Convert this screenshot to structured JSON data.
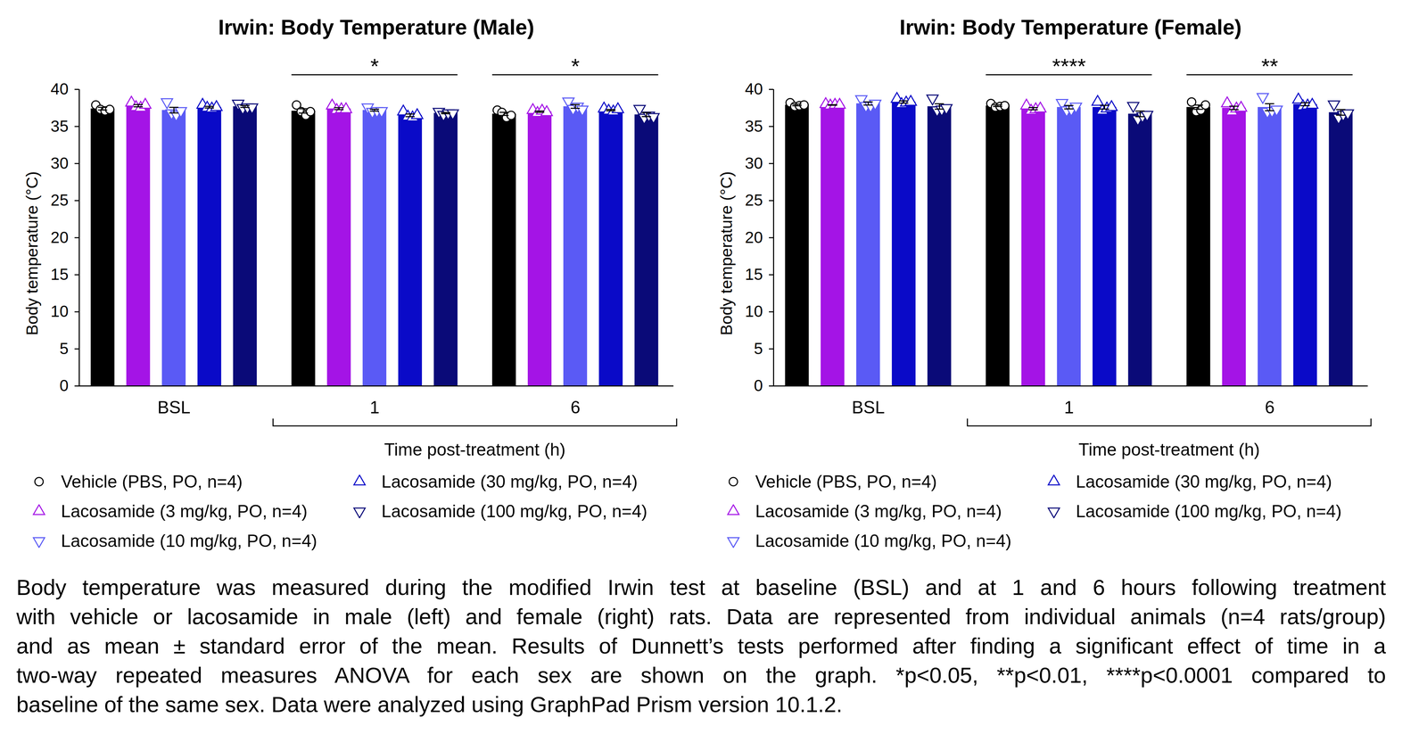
{
  "chart_data": [
    {
      "type": "bar",
      "title": "Irwin: Body Temperature (Male)",
      "xlabel": "Time post-treatment (h)",
      "ylabel": "Body temperature (°C)",
      "categories": [
        "BSL",
        "1",
        "6"
      ],
      "ylim": [
        0,
        40
      ],
      "yticks": [
        0,
        5,
        10,
        15,
        20,
        25,
        30,
        35,
        40
      ],
      "grid": false,
      "legend": "bottom",
      "annotations": [
        {
          "category": "1",
          "text": "*"
        },
        {
          "category": "6",
          "text": "*"
        }
      ],
      "series": [
        {
          "name": "Vehicle (PBS, PO, n=4)",
          "color": "#000000",
          "marker": "circle",
          "values": [
            37.4,
            37.1,
            36.7
          ],
          "errors": [
            0.18,
            0.29,
            0.21
          ],
          "points": [
            [
              37.9,
              37.3,
              37.1,
              37.3
            ],
            [
              37.9,
              37.0,
              36.5,
              37.0
            ],
            [
              37.2,
              36.9,
              36.2,
              36.5
            ]
          ]
        },
        {
          "name": "Lacosamide (3 mg/kg, PO, n=4)",
          "color": "#a414e6",
          "marker": "triangle",
          "values": [
            37.8,
            37.4,
            37.0
          ],
          "errors": [
            0.15,
            0.13,
            0.09
          ],
          "points": [
            [
              38.2,
              37.6,
              37.5,
              37.9
            ],
            [
              37.8,
              37.2,
              37.3,
              37.3
            ],
            [
              37.2,
              36.8,
              37.1,
              36.9
            ]
          ]
        },
        {
          "name": "Lacosamide (10 mg/kg, PO, n=4)",
          "color": "#5a5af5",
          "marker": "triangle-down",
          "values": [
            37.2,
            37.2,
            37.7
          ],
          "errors": [
            0.38,
            0.13,
            0.25
          ],
          "points": [
            [
              38.3,
              36.8,
              36.6,
              37.1
            ],
            [
              37.6,
              37.0,
              37.1,
              37.1
            ],
            [
              38.4,
              37.4,
              37.7,
              37.3
            ]
          ]
        },
        {
          "name": "Lacosamide (30 mg/kg, PO, n=4)",
          "color": "#0a0ac8",
          "marker": "triangle",
          "values": [
            37.6,
            36.5,
            37.2
          ],
          "errors": [
            0.11,
            0.18,
            0.09
          ],
          "points": [
            [
              37.9,
              37.5,
              37.4,
              37.6
            ],
            [
              37.0,
              36.3,
              36.2,
              36.5
            ],
            [
              37.4,
              37.1,
              37.0,
              37.3
            ]
          ]
        },
        {
          "name": "Lacosamide (100 mg/kg, PO, n=4)",
          "color": "#0a0a78",
          "marker": "triangle-down",
          "values": [
            37.7,
            36.8,
            36.6
          ],
          "errors": [
            0.13,
            0.08,
            0.27
          ],
          "points": [
            [
              38.1,
              37.5,
              37.6,
              37.6
            ],
            [
              37.0,
              36.6,
              36.8,
              36.8
            ],
            [
              37.4,
              36.2,
              36.5,
              36.3
            ]
          ]
        }
      ]
    },
    {
      "type": "bar",
      "title": "Irwin: Body Temperature (Female)",
      "xlabel": "Time post-treatment (h)",
      "ylabel": "Body temperature (°C)",
      "categories": [
        "BSL",
        "1",
        "6"
      ],
      "ylim": [
        0,
        40
      ],
      "yticks": [
        0,
        5,
        10,
        15,
        20,
        25,
        30,
        35,
        40
      ],
      "grid": false,
      "legend": "bottom",
      "annotations": [
        {
          "category": "1",
          "text": "****"
        },
        {
          "category": "6",
          "text": "**"
        }
      ],
      "series": [
        {
          "name": "Vehicle (PBS, PO, n=4)",
          "color": "#000000",
          "marker": "circle",
          "values": [
            37.9,
            37.8,
            37.6
          ],
          "errors": [
            0.11,
            0.11,
            0.29
          ],
          "points": [
            [
              38.2,
              37.7,
              37.8,
              37.9
            ],
            [
              38.1,
              37.6,
              37.7,
              37.8
            ],
            [
              38.3,
              37.0,
              37.2,
              37.9
            ]
          ]
        },
        {
          "name": "Lacosamide (3 mg/kg, PO, n=4)",
          "color": "#a414e6",
          "marker": "triangle",
          "values": [
            37.9,
            37.4,
            37.5
          ],
          "errors": [
            0.04,
            0.15,
            0.23
          ],
          "points": [
            [
              38.0,
              37.8,
              37.9,
              37.9
            ],
            [
              37.8,
              37.1,
              37.3,
              37.4
            ],
            [
              38.1,
              37.0,
              37.4,
              37.5
            ]
          ]
        },
        {
          "name": "Lacosamide (10 mg/kg, PO, n=4)",
          "color": "#5a5af5",
          "marker": "triangle-down",
          "values": [
            38.1,
            37.6,
            37.6
          ],
          "errors": [
            0.21,
            0.23,
            0.47
          ],
          "points": [
            [
              38.7,
              37.8,
              37.8,
              38.1
            ],
            [
              38.2,
              37.2,
              37.3,
              37.7
            ],
            [
              39.0,
              37.0,
              37.1,
              37.3
            ]
          ]
        },
        {
          "name": "Lacosamide (30 mg/kg, PO, n=4)",
          "color": "#0a0ac8",
          "marker": "triangle",
          "values": [
            38.3,
            37.6,
            38.0
          ],
          "errors": [
            0.15,
            0.25,
            0.2
          ],
          "points": [
            [
              38.7,
              38.0,
              38.2,
              38.3
            ],
            [
              38.3,
              37.1,
              37.4,
              37.6
            ],
            [
              38.6,
              37.7,
              37.8,
              37.9
            ]
          ]
        },
        {
          "name": "Lacosamide (100 mg/kg, PO, n=4)",
          "color": "#0a0a78",
          "marker": "triangle-down",
          "values": [
            37.7,
            36.7,
            36.9
          ],
          "errors": [
            0.36,
            0.38,
            0.38
          ],
          "points": [
            [
              38.8,
              37.2,
              37.3,
              37.5
            ],
            [
              37.8,
              36.0,
              36.4,
              36.6
            ],
            [
              38.0,
              36.2,
              36.6,
              36.8
            ]
          ]
        }
      ]
    }
  ],
  "caption": [
    "Body temperature was measured during the modified Irwin test at baseline (BSL) and at 1 and 6 hours following treatment",
    "with vehicle or lacosamide in male (left) and female (right) rats. Data are represented from individual animals (n=4 rats/group)",
    "and as mean ± standard error of the mean. Results of Dunnett’s tests performed after finding a significant effect of time in a",
    "two-way repeated measures ANOVA for each sex are shown on the graph. *p<0.05, **p<0.01, ****p<0.0001 compared to",
    "baseline of the same sex. Data were analyzed using GraphPad Prism version 10.1.2."
  ]
}
